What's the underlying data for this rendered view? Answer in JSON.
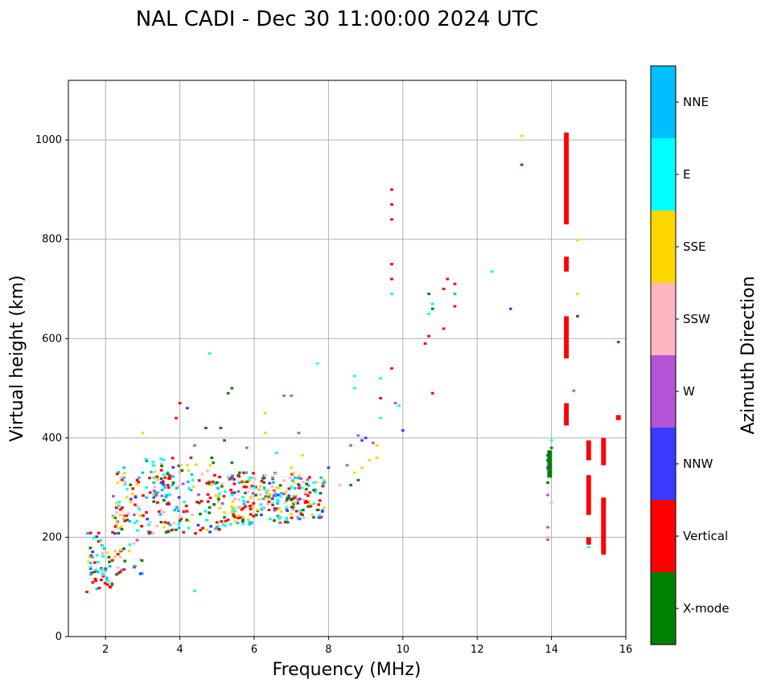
{
  "chart_data": {
    "type": "scatter",
    "subtype": "ionogram",
    "title": "NAL CADI - Dec 30 11:00:00 2024 UTC",
    "xlabel": "Frequency (MHz)",
    "ylabel": "Virtual height (km)",
    "xlim": [
      1,
      16
    ],
    "ylim": [
      0,
      1120
    ],
    "xticks": [
      2,
      4,
      6,
      8,
      10,
      12,
      14,
      16
    ],
    "yticks": [
      0,
      200,
      400,
      600,
      800,
      1000
    ],
    "grid": true,
    "colorbar": {
      "title": "Azimuth Direction",
      "position": "right",
      "categories": [
        {
          "name": "X-mode",
          "color": "#008000"
        },
        {
          "name": "Vertical",
          "color": "#ff0000"
        },
        {
          "name": "NNW",
          "color": "#3a3aff"
        },
        {
          "name": "W",
          "color": "#b553d8"
        },
        {
          "name": "SSW",
          "color": "#ffb6c1"
        },
        {
          "name": "SSE",
          "color": "#ffd700"
        },
        {
          "name": "E",
          "color": "#00ffff"
        },
        {
          "name": "NNE",
          "color": "#00bfff"
        }
      ]
    },
    "series": [
      {
        "name": "X-mode",
        "points": [
          [
            7.3,
            245
          ],
          [
            7.6,
            240
          ],
          [
            7.0,
            275
          ],
          [
            6.5,
            265
          ],
          [
            5.7,
            235
          ],
          [
            5.2,
            240
          ],
          [
            4.8,
            260
          ],
          [
            3.9,
            215
          ],
          [
            8.6,
            305
          ],
          [
            8.8,
            315
          ],
          [
            10.8,
            660
          ],
          [
            10.7,
            690
          ],
          [
            13.2,
            950
          ],
          [
            14.7,
            645
          ],
          [
            15.8,
            593
          ],
          [
            13.9,
            340
          ],
          [
            13.9,
            355
          ],
          [
            13.9,
            365
          ],
          [
            13.9,
            310
          ],
          [
            14.0,
            380
          ],
          [
            5.4,
            500
          ],
          [
            5.3,
            490
          ],
          [
            5.4,
            350
          ],
          [
            5.2,
            395
          ],
          [
            4.9,
            350
          ],
          [
            4.7,
            420
          ],
          [
            5.1,
            420
          ],
          [
            1.7,
            130
          ],
          [
            2.3,
            125
          ],
          [
            6.9,
            230
          ],
          [
            7.7,
            255
          ]
        ],
        "bands": [
          {
            "x": 13.95,
            "y1": 320,
            "y2": 375
          }
        ]
      },
      {
        "name": "Vertical",
        "points": [
          [
            9.7,
            900
          ],
          [
            9.7,
            870
          ],
          [
            9.7,
            840
          ],
          [
            9.7,
            750
          ],
          [
            9.7,
            720
          ],
          [
            9.7,
            540
          ],
          [
            10.6,
            590
          ],
          [
            10.7,
            605
          ],
          [
            10.8,
            490
          ],
          [
            11.1,
            620
          ],
          [
            11.2,
            720
          ],
          [
            11.1,
            700
          ],
          [
            11.4,
            665
          ],
          [
            11.4,
            710
          ],
          [
            9.4,
            480
          ],
          [
            3.2,
            210
          ],
          [
            3.6,
            230
          ],
          [
            3.8,
            215
          ],
          [
            4.1,
            210
          ],
          [
            3.1,
            250
          ],
          [
            3.4,
            270
          ],
          [
            3.7,
            300
          ],
          [
            3.2,
            290
          ],
          [
            3.6,
            320
          ],
          [
            4.0,
            470
          ],
          [
            3.9,
            440
          ],
          [
            4.3,
            360
          ],
          [
            2.4,
            130
          ],
          [
            2.5,
            135
          ],
          [
            1.5,
            90
          ],
          [
            6.4,
            255
          ],
          [
            7.1,
            280
          ],
          [
            7.5,
            290
          ],
          [
            5.0,
            230
          ],
          [
            5.3,
            235
          ]
        ],
        "bands": [
          {
            "x": 14.4,
            "y1": 830,
            "y2": 1015
          },
          {
            "x": 14.4,
            "y1": 735,
            "y2": 765
          },
          {
            "x": 14.4,
            "y1": 560,
            "y2": 645
          },
          {
            "x": 14.4,
            "y1": 425,
            "y2": 470
          },
          {
            "x": 15.0,
            "y1": 355,
            "y2": 395
          },
          {
            "x": 15.0,
            "y1": 245,
            "y2": 325
          },
          {
            "x": 15.0,
            "y1": 185,
            "y2": 200
          },
          {
            "x": 15.4,
            "y1": 345,
            "y2": 400
          },
          {
            "x": 15.4,
            "y1": 165,
            "y2": 280
          },
          {
            "x": 15.8,
            "y1": 436,
            "y2": 446
          }
        ]
      },
      {
        "name": "NNW",
        "points": [
          [
            12.9,
            660
          ],
          [
            9.0,
            400
          ],
          [
            8.9,
            395
          ],
          [
            10.0,
            415
          ],
          [
            4.2,
            460
          ],
          [
            8.0,
            340
          ],
          [
            13.9,
            340
          ],
          [
            3.5,
            310
          ],
          [
            3.3,
            280
          ]
        ]
      },
      {
        "name": "W",
        "points": [
          [
            8.6,
            385
          ],
          [
            8.8,
            405
          ],
          [
            9.2,
            390
          ],
          [
            8.5,
            345
          ],
          [
            9.8,
            470
          ],
          [
            13.9,
            285
          ],
          [
            13.9,
            220
          ],
          [
            13.9,
            195
          ],
          [
            14.6,
            495
          ],
          [
            6.8,
            485
          ],
          [
            7.0,
            485
          ],
          [
            4.4,
            385
          ],
          [
            5.8,
            380
          ],
          [
            7.2,
            410
          ]
        ]
      },
      {
        "name": "SSW",
        "points": [
          [
            2.3,
            250
          ],
          [
            2.3,
            230
          ],
          [
            2.4,
            160
          ],
          [
            2.5,
            240
          ],
          [
            3.2,
            230
          ],
          [
            3.5,
            255
          ],
          [
            4.0,
            240
          ],
          [
            6.2,
            260
          ],
          [
            6.5,
            270
          ],
          [
            5.6,
            260
          ],
          [
            8.3,
            305
          ],
          [
            14.0,
            270
          ],
          [
            13.9,
            200
          ]
        ]
      },
      {
        "name": "SSE",
        "points": [
          [
            8.7,
            330
          ],
          [
            8.9,
            340
          ],
          [
            9.1,
            355
          ],
          [
            9.3,
            360
          ],
          [
            9.3,
            385
          ],
          [
            13.2,
            1008
          ],
          [
            14.7,
            690
          ],
          [
            14.7,
            798
          ],
          [
            6.3,
            450
          ],
          [
            6.3,
            410
          ],
          [
            7.0,
            340
          ],
          [
            7.3,
            365
          ],
          [
            6.6,
            300
          ],
          [
            3.0,
            410
          ],
          [
            2.2,
            240
          ],
          [
            2.4,
            245
          ],
          [
            6.1,
            255
          ],
          [
            5.7,
            240
          ],
          [
            5.2,
            250
          ],
          [
            7.1,
            270
          ]
        ]
      },
      {
        "name": "E",
        "points": [
          [
            12.4,
            735
          ],
          [
            10.7,
            650
          ],
          [
            10.8,
            670
          ],
          [
            11.4,
            690
          ],
          [
            9.7,
            690
          ],
          [
            9.9,
            465
          ],
          [
            9.4,
            520
          ],
          [
            9.4,
            440
          ],
          [
            8.7,
            500
          ],
          [
            8.7,
            525
          ],
          [
            4.4,
            92
          ],
          [
            4.8,
            570
          ],
          [
            7.7,
            550
          ],
          [
            1.6,
            140
          ],
          [
            1.8,
            150
          ],
          [
            1.9,
            135
          ],
          [
            3.1,
            300
          ],
          [
            3.3,
            320
          ],
          [
            6.6,
            370
          ],
          [
            14.0,
            395
          ],
          [
            15.0,
            180
          ],
          [
            6.0,
            300
          ],
          [
            7.0,
            300
          ]
        ]
      },
      {
        "name": "NNE",
        "points": [
          [
            2.5,
            340
          ],
          [
            2.5,
            320
          ],
          [
            3.0,
            330
          ],
          [
            3.3,
            310
          ],
          [
            3.6,
            300
          ],
          [
            3.8,
            305
          ],
          [
            4.3,
            295
          ],
          [
            3.1,
            280
          ],
          [
            3.4,
            290
          ],
          [
            2.9,
            320
          ],
          [
            1.8,
            130
          ],
          [
            1.6,
            125
          ],
          [
            11.4,
            690
          ],
          [
            7.8,
            320
          ],
          [
            6.5,
            320
          ],
          [
            7.1,
            320
          ]
        ]
      }
    ],
    "cloud_note": "dense scattered traces between 1.5-8 MHz, heights ~90-600 km"
  }
}
